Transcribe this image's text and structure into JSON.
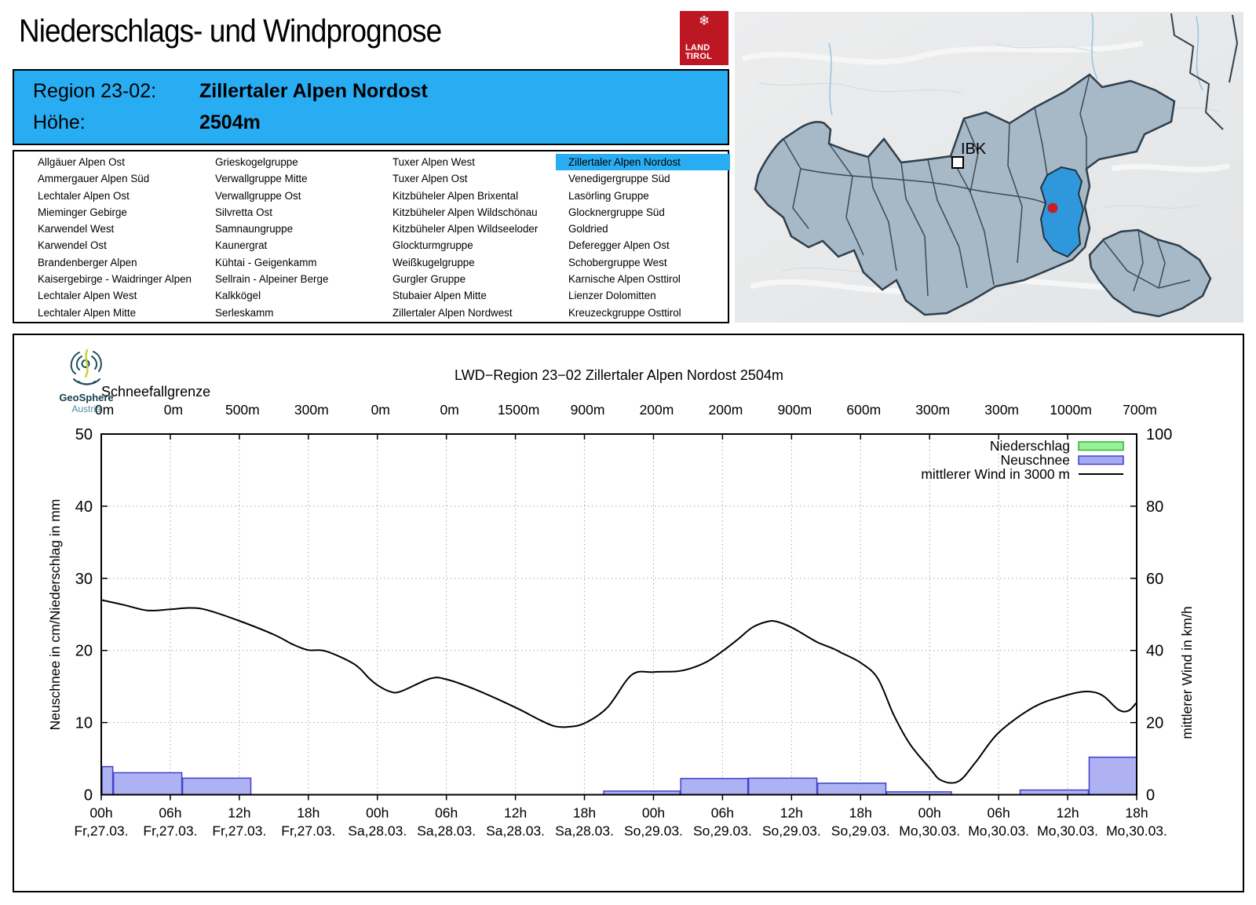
{
  "page": {
    "title": "Niederschlags- und Windprognose"
  },
  "land_tirol_logo": {
    "line1": "LAND",
    "line2": "TIROL",
    "snowflake": "❄",
    "red": "#BE1724"
  },
  "region_header": {
    "bg": "#29ADF2",
    "region_label": "Region 23-02:",
    "region_value": "Zillertaler Alpen Nordost",
    "altitude_label": "Höhe:",
    "altitude_value": "2504m"
  },
  "region_list": {
    "selected": "Zillertaler Alpen Nordost",
    "highlight_color": "#29ADF2",
    "columns": [
      [
        "Allgäuer Alpen Ost",
        "Ammergauer Alpen Süd",
        "Lechtaler Alpen Ost",
        "Mieminger Gebirge",
        "Karwendel West",
        "Karwendel Ost",
        "Brandenberger Alpen",
        "Kaisergebirge - Waidringer Alpen",
        "Lechtaler Alpen West",
        "Lechtaler Alpen Mitte"
      ],
      [
        "Grieskogelgruppe",
        "Verwallgruppe Mitte",
        "Verwallgruppe Ost",
        "Silvretta Ost",
        "Samnaungruppe",
        "Kaunergrat",
        "Kühtai - Geigenkamm",
        "Sellrain - Alpeiner Berge",
        "Kalkkögel",
        "Serleskamm"
      ],
      [
        "Tuxer Alpen West",
        "Tuxer Alpen Ost",
        "Kitzbüheler Alpen Brixental",
        "Kitzbüheler Alpen Wildschönau",
        "Kitzbüheler Alpen Wildseeloder",
        "Glockturmgruppe",
        "Weißkugelgruppe",
        "Gurgler Gruppe",
        "Stubaier Alpen Mitte",
        "Zillertaler Alpen Nordwest"
      ],
      [
        "Zillertaler Alpen Nordost",
        "Venedigergruppe Süd",
        "Lasörling Gruppe",
        "Glocknergruppe Süd",
        "Goldried",
        "Deferegger Alpen Ost",
        "Schobergruppe West",
        "Karnische Alpen Osttirol",
        "Lienzer Dolomitten",
        "Kreuzeckgruppe Osttirol"
      ]
    ]
  },
  "map": {
    "city_label": "IBK",
    "region_fill": "#A7B8C7",
    "region_stroke": "#2E3E4C",
    "selected_fill": "#2F97DC",
    "dot_color": "#C42127",
    "bg": "#E9EAEB"
  },
  "geosphere_logo": {
    "name": "GeoSphere",
    "sub": "Austria"
  },
  "chart_data": {
    "type": "composite",
    "title": "LWD−Region 23−02 Zillertaler Alpen Nordost 2504m",
    "snowline_label": "Schneefallgrenze",
    "snowline_values": [
      "0m",
      "0m",
      "500m",
      "300m",
      "0m",
      "0m",
      "1500m",
      "900m",
      "200m",
      "200m",
      "900m",
      "600m",
      "300m",
      "300m",
      "1000m",
      "700m"
    ],
    "x_ticks": [
      {
        "time": "00h",
        "date": "Fr,27.03."
      },
      {
        "time": "06h",
        "date": "Fr,27.03."
      },
      {
        "time": "12h",
        "date": "Fr,27.03."
      },
      {
        "time": "18h",
        "date": "Fr,27.03."
      },
      {
        "time": "00h",
        "date": "Sa,28.03."
      },
      {
        "time": "06h",
        "date": "Sa,28.03."
      },
      {
        "time": "12h",
        "date": "Sa,28.03."
      },
      {
        "time": "18h",
        "date": "Sa,28.03."
      },
      {
        "time": "00h",
        "date": "So,29.03."
      },
      {
        "time": "06h",
        "date": "So,29.03."
      },
      {
        "time": "12h",
        "date": "So,29.03."
      },
      {
        "time": "18h",
        "date": "So,29.03."
      },
      {
        "time": "00h",
        "date": "Mo,30.03."
      },
      {
        "time": "06h",
        "date": "Mo,30.03."
      },
      {
        "time": "12h",
        "date": "Mo,30.03."
      },
      {
        "time": "18h",
        "date": "Mo,30.03."
      }
    ],
    "hours_total": 90,
    "tick_interval_h": 6,
    "ylabel_left": "Neuschnee in cm/Niederschlag in mm",
    "ylabel_right": "mittlerer Wind in km/h",
    "ylim_left": [
      0,
      50
    ],
    "ylim_right": [
      0,
      100
    ],
    "ytick_step_left": 10,
    "ytick_step_right": 20,
    "grid": true,
    "legend_position": "top-right",
    "legend": [
      {
        "label": "Niederschlag",
        "type": "box",
        "fill": "#97F297",
        "stroke": "#2FB32F"
      },
      {
        "label": "Neuschnee",
        "type": "box",
        "fill": "#A6AAF1",
        "stroke": "#4040CF"
      },
      {
        "label": "mittlerer Wind in 3000 m",
        "type": "line",
        "stroke": "#000000"
      }
    ],
    "niederschlag_bars_mm": [],
    "neuschnee_bars_cm": [
      {
        "start_h": 0,
        "end_h": 1,
        "value": 3.9
      },
      {
        "start_h": 1,
        "end_h": 7,
        "value": 3.05
      },
      {
        "start_h": 7,
        "end_h": 13,
        "value": 2.3
      },
      {
        "start_h": 43.6,
        "end_h": 50.3,
        "value": 0.5
      },
      {
        "start_h": 50.3,
        "end_h": 56.2,
        "value": 2.25
      },
      {
        "start_h": 56.2,
        "end_h": 62.2,
        "value": 2.3
      },
      {
        "start_h": 62.2,
        "end_h": 68.2,
        "value": 1.6
      },
      {
        "start_h": 68.2,
        "end_h": 73.9,
        "value": 0.4
      },
      {
        "start_h": 79.8,
        "end_h": 85.8,
        "value": 0.65
      },
      {
        "start_h": 85.8,
        "end_h": 90,
        "value": 5.2
      }
    ],
    "wind_kmh": [
      [
        0,
        54
      ],
      [
        2,
        52.6
      ],
      [
        4,
        51.1
      ],
      [
        6,
        51.4
      ],
      [
        7.7,
        51.8
      ],
      [
        9.2,
        51.2
      ],
      [
        12,
        48.2
      ],
      [
        15,
        44.4
      ],
      [
        16.7,
        41.6
      ],
      [
        18,
        40.1
      ],
      [
        19.5,
        39.8
      ],
      [
        22,
        36.2
      ],
      [
        23.3,
        32.2
      ],
      [
        24,
        30.4
      ],
      [
        25,
        28.7
      ],
      [
        26,
        28.6
      ],
      [
        28.6,
        32.2
      ],
      [
        30,
        32
      ],
      [
        32.5,
        29.2
      ],
      [
        36,
        24.2
      ],
      [
        38.2,
        20.6
      ],
      [
        39.4,
        19
      ],
      [
        40.5,
        18.8
      ],
      [
        42,
        19.8
      ],
      [
        44,
        24.2
      ],
      [
        46.1,
        33.2
      ],
      [
        48,
        34
      ],
      [
        50,
        34.2
      ],
      [
        51.2,
        35
      ],
      [
        52.6,
        36.8
      ],
      [
        54,
        39.8
      ],
      [
        55.3,
        43
      ],
      [
        56.6,
        46.4
      ],
      [
        57.9,
        48
      ],
      [
        58.7,
        48
      ],
      [
        60,
        46.4
      ],
      [
        61.4,
        43.8
      ],
      [
        62.3,
        42.2
      ],
      [
        63.7,
        40.4
      ],
      [
        64.3,
        39.4
      ],
      [
        66,
        36.6
      ],
      [
        67.5,
        32.2
      ],
      [
        68.9,
        22
      ],
      [
        70.3,
        14
      ],
      [
        72,
        7.4
      ],
      [
        73,
        4
      ],
      [
        74.5,
        3.7
      ],
      [
        76,
        9
      ],
      [
        78,
        17.2
      ],
      [
        81,
        24.2
      ],
      [
        83.5,
        27.2
      ],
      [
        85.5,
        28.6
      ],
      [
        87,
        27.6
      ],
      [
        88.4,
        23.6
      ],
      [
        89.3,
        23.3
      ],
      [
        90,
        25.6
      ]
    ]
  }
}
